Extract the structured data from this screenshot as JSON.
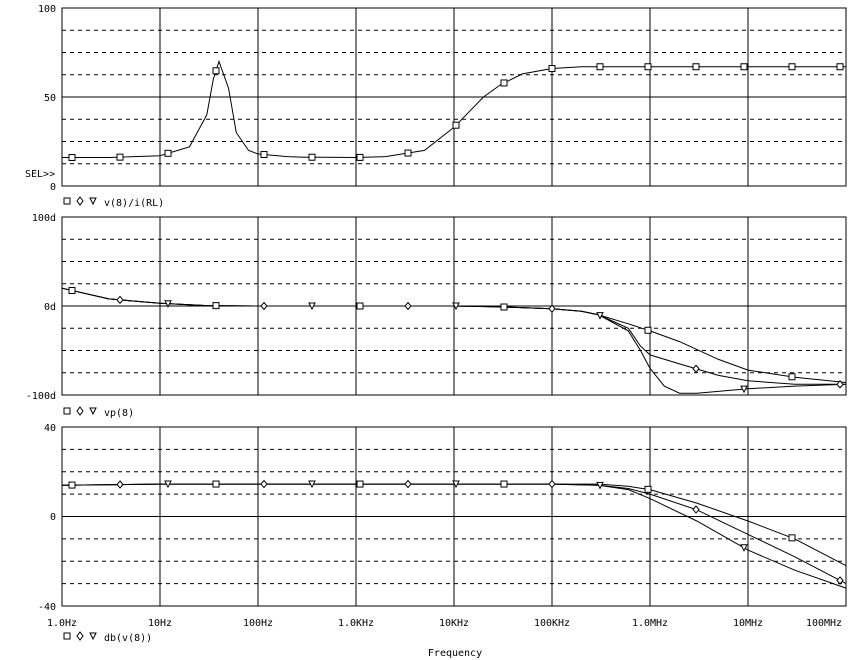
{
  "x_axis": {
    "label": "Frequency",
    "tick_labels": [
      "1.0Hz",
      "10Hz",
      "100Hz",
      "1.0KHz",
      "10KHz",
      "100KHz",
      "1.0MHz",
      "10MHz",
      "100MHz"
    ]
  },
  "selector_label": "SEL>>",
  "chart_data": [
    {
      "type": "line",
      "legend": "v(8)/i(RL)",
      "ylim": [
        0,
        100
      ],
      "y_tick_labels": [
        "0",
        "50",
        "100"
      ],
      "x_scale": "log",
      "xlim_hz": [
        1,
        100000000
      ],
      "series": [
        {
          "marker": "square",
          "x": [
            1,
            3,
            10,
            20,
            30,
            35,
            40,
            50,
            60,
            80,
            100,
            200,
            300,
            500,
            1000,
            2000,
            5000,
            10000,
            20000,
            30000,
            50000,
            100000,
            200000,
            1000000,
            10000000,
            100000000
          ],
          "y": [
            16,
            16,
            17,
            22,
            40,
            60,
            70,
            55,
            30,
            20,
            18,
            16.5,
            16.2,
            16.1,
            16,
            16.5,
            20,
            33,
            50,
            57,
            63,
            66,
            67,
            67,
            67,
            67
          ]
        }
      ]
    },
    {
      "type": "line",
      "legend": "vp(8)",
      "ylim": [
        -100,
        100
      ],
      "y_tick_labels": [
        "-100d",
        "0d",
        "100d"
      ],
      "x_scale": "log",
      "xlim_hz": [
        1,
        100000000
      ],
      "series": [
        {
          "marker": "square",
          "x": [
            1,
            3,
            10,
            30,
            100,
            1000,
            10000,
            30000,
            100000,
            200000,
            300000,
            600000,
            1000000,
            2000000,
            5000000,
            10000000,
            30000000,
            100000000
          ],
          "y": [
            20,
            8,
            3,
            0.5,
            0,
            0,
            0,
            -1,
            -3,
            -6,
            -10,
            -20,
            -28,
            -40,
            -60,
            -72,
            -80,
            -86
          ]
        },
        {
          "marker": "diamond",
          "x": [
            1,
            3,
            10,
            30,
            100,
            1000,
            10000,
            30000,
            100000,
            200000,
            300000,
            600000,
            800000,
            1000000,
            2000000,
            5000000,
            10000000,
            30000000,
            100000000
          ],
          "y": [
            20,
            8,
            3,
            0.5,
            0,
            0,
            0,
            -1,
            -3,
            -6,
            -10,
            -25,
            -45,
            -55,
            -65,
            -78,
            -84,
            -88,
            -88
          ]
        },
        {
          "marker": "triangle",
          "x": [
            1,
            3,
            10,
            30,
            100,
            1000,
            10000,
            30000,
            100000,
            200000,
            300000,
            600000,
            800000,
            1000000,
            1400000,
            2000000,
            3000000,
            10000000,
            30000000,
            100000000
          ],
          "y": [
            20,
            8,
            3,
            0.5,
            0,
            0,
            0,
            -1,
            -3,
            -6,
            -10,
            -28,
            -50,
            -70,
            -90,
            -98,
            -98,
            -93,
            -90,
            -88
          ]
        }
      ]
    },
    {
      "type": "line",
      "legend": "db(v(8))",
      "ylim": [
        -40,
        40
      ],
      "y_tick_labels": [
        "-40",
        "0",
        "40"
      ],
      "x_scale": "log",
      "xlim_hz": [
        1,
        100000000
      ],
      "series": [
        {
          "marker": "square",
          "x": [
            1,
            10,
            100,
            1000,
            10000,
            100000,
            300000,
            600000,
            1000000,
            3000000,
            10000000,
            30000000,
            100000000
          ],
          "y": [
            14,
            14.5,
            14.5,
            14.5,
            14.5,
            14.5,
            14.5,
            13.5,
            12,
            6,
            -2,
            -10,
            -22
          ]
        },
        {
          "marker": "diamond",
          "x": [
            1,
            10,
            100,
            1000,
            10000,
            100000,
            300000,
            600000,
            1000000,
            3000000,
            10000000,
            30000000,
            100000000
          ],
          "y": [
            14,
            14.5,
            14.5,
            14.5,
            14.5,
            14.5,
            14,
            12.5,
            10,
            3,
            -8,
            -18,
            -30
          ]
        },
        {
          "marker": "triangle",
          "x": [
            1,
            10,
            100,
            1000,
            10000,
            100000,
            300000,
            600000,
            1000000,
            3000000,
            10000000,
            30000000,
            100000000
          ],
          "y": [
            14,
            14.5,
            14.5,
            14.5,
            14.5,
            14.5,
            14,
            12,
            8,
            -2,
            -15,
            -24,
            -32
          ]
        }
      ]
    }
  ]
}
